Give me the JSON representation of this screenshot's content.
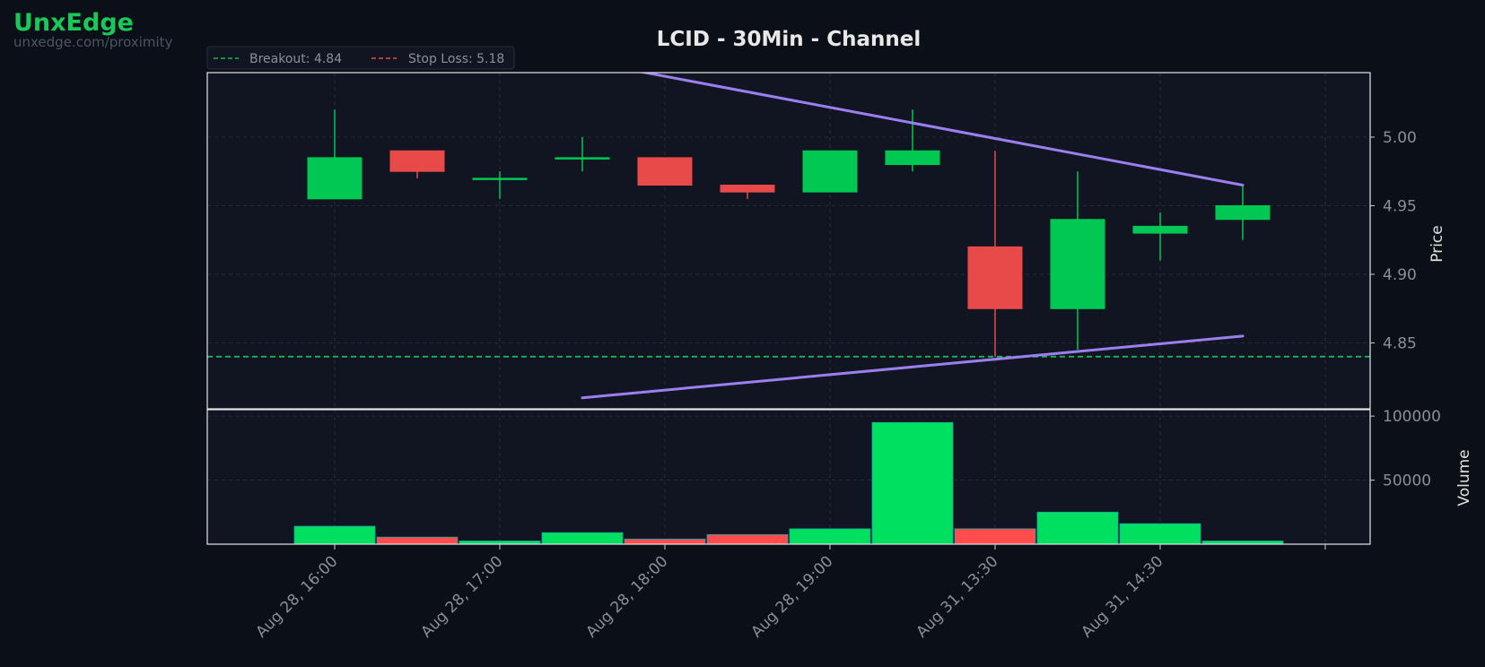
{
  "brand": {
    "name": "UnxEdge",
    "url": "unxedge.com/proximity"
  },
  "colors": {
    "background": "#0b0f17",
    "plot_background": "#111522",
    "up": "#00c853",
    "down": "#e84a4a",
    "volume_up": "#00e060",
    "volume_down": "#ff4d4d",
    "trendline": "#9b7ff0",
    "breakout": "#14b85a",
    "stop_loss": "#e84a4a",
    "axis_text": "#8a8f99",
    "title_text": "#e8e8e8"
  },
  "chart_data": {
    "type": "candlestick",
    "title": "LCID - 30Min - Channel",
    "ylabel": "Price",
    "volume_label": "Volume",
    "ylim": [
      4.802,
      5.047
    ],
    "yticks": [
      4.85,
      4.9,
      4.95,
      5.0
    ],
    "ytick_labels": [
      "4.85",
      "4.90",
      "4.95",
      "5.00"
    ],
    "volume_ylim": [
      0,
      105000
    ],
    "volume_ticks": [
      50000,
      100000
    ],
    "volume_tick_labels": [
      "50000",
      "100000"
    ],
    "xticks": [
      {
        "index": 0,
        "label": "Aug 28, 16:00"
      },
      {
        "index": 2,
        "label": "Aug 28, 17:00"
      },
      {
        "index": 4,
        "label": "Aug 28, 18:00"
      },
      {
        "index": 6,
        "label": "Aug 28, 19:00"
      },
      {
        "index": 8,
        "label": "Aug 31, 13:30"
      },
      {
        "index": 10,
        "label": "Aug 31, 14:30"
      },
      {
        "index": 12,
        "label": ""
      }
    ],
    "candles": [
      {
        "open": 4.955,
        "high": 5.02,
        "low": 4.955,
        "close": 4.985,
        "volume": 14000
      },
      {
        "open": 4.99,
        "high": 4.99,
        "low": 4.97,
        "close": 4.975,
        "volume": 5500
      },
      {
        "open": 4.97,
        "high": 4.975,
        "low": 4.955,
        "close": 4.97,
        "volume": 2500
      },
      {
        "open": 4.985,
        "high": 5.0,
        "low": 4.975,
        "close": 4.985,
        "volume": 9000
      },
      {
        "open": 4.985,
        "high": 4.985,
        "low": 4.965,
        "close": 4.965,
        "volume": 4000
      },
      {
        "open": 4.965,
        "high": 4.965,
        "low": 4.955,
        "close": 4.96,
        "volume": 7500
      },
      {
        "open": 4.96,
        "high": 4.99,
        "low": 4.96,
        "close": 4.99,
        "volume": 12000
      },
      {
        "open": 4.98,
        "high": 5.02,
        "low": 4.975,
        "close": 4.99,
        "volume": 95000
      },
      {
        "open": 4.92,
        "high": 4.99,
        "low": 4.84,
        "close": 4.875,
        "volume": 12000
      },
      {
        "open": 4.875,
        "high": 4.975,
        "low": 4.845,
        "close": 4.94,
        "volume": 25000
      },
      {
        "open": 4.93,
        "high": 4.945,
        "low": 4.91,
        "close": 4.935,
        "volume": 16000
      },
      {
        "open": 4.94,
        "high": 4.965,
        "low": 4.925,
        "close": 4.95,
        "volume": 2500
      }
    ],
    "trendlines": [
      {
        "name": "upper",
        "points": [
          [
            3.5,
            5.05
          ],
          [
            11,
            4.965
          ]
        ]
      },
      {
        "name": "lower",
        "points": [
          [
            3,
            4.81
          ],
          [
            11,
            4.855
          ]
        ]
      }
    ],
    "hlines": [
      {
        "name": "Breakout",
        "label": "Breakout: 4.84",
        "value": 4.84
      }
    ],
    "legend": {
      "placement": "top-left",
      "entries": [
        {
          "label": "Breakout: 4.84",
          "style": "dashed",
          "color": "#14b85a"
        },
        {
          "label": "Stop Loss: 5.18",
          "style": "dashed",
          "color": "#e84a4a"
        }
      ]
    },
    "grid": true
  }
}
